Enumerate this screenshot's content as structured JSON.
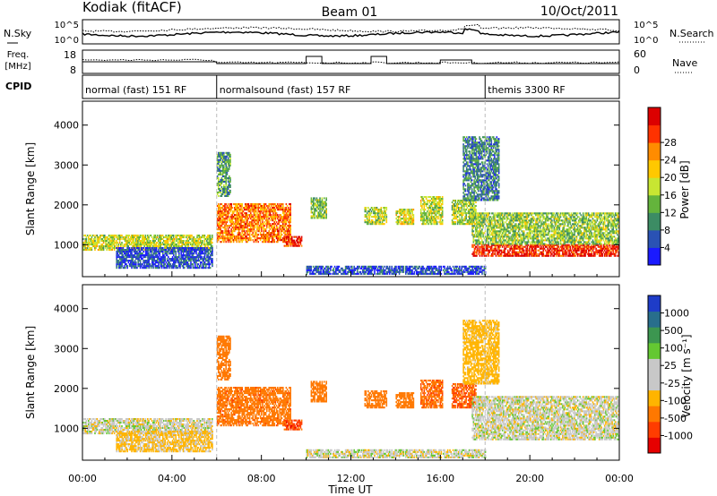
{
  "header": {
    "station": "Kodiak (fitACF)",
    "beam": "Beam 01",
    "date": "10/Oct/2011"
  },
  "status_panels": {
    "nsky_label": "N.Sky",
    "nsky_ticks": [
      "10^5",
      "10^0"
    ],
    "nsearch_label": "N.Search",
    "nsearch_ticks": [
      "10^5",
      "10^0"
    ],
    "freq_label_line1": "Freq.",
    "freq_label_line2": "[MHz]",
    "freq_ticks": [
      "18",
      "8"
    ],
    "nave_label": "Nave",
    "nave_ticks": [
      "60",
      "0"
    ],
    "cpid_label": "CPID",
    "cpid_segments": [
      {
        "label": "normal (fast) 151 RF",
        "start_hour": 0
      },
      {
        "label": "normalsound (fast) 157 RF",
        "start_hour": 6
      },
      {
        "label": "themis 3300 RF",
        "start_hour": 18
      }
    ]
  },
  "power_panel": {
    "ylabel": "Slant Range [km]",
    "yticks": [
      "1000",
      "2000",
      "3000",
      "4000"
    ],
    "colorbar_label": "Power [dB]",
    "colorbar_ticks": [
      "4",
      "8",
      "12",
      "16",
      "20",
      "24",
      "28"
    ],
    "colors": [
      "#1a1aff",
      "#2a52b4",
      "#3c8c64",
      "#64b43c",
      "#c8e632",
      "#ffc800",
      "#ff8c00",
      "#ff3200",
      "#dc0000"
    ]
  },
  "velocity_panel": {
    "ylabel": "Slant Range [km]",
    "yticks": [
      "1000",
      "2000",
      "3000",
      "4000"
    ],
    "colorbar_label": "Velocity [m s⁻¹]",
    "colorbar_ticks": [
      "1000",
      "500",
      "100",
      "25",
      "-25",
      "-100",
      "-500",
      "-1000"
    ],
    "colors": [
      "#1e3cc8",
      "#286e8c",
      "#3c9650",
      "#64c832",
      "#c8c8c8",
      "#c8c8c8",
      "#ffb400",
      "#ff7800",
      "#ff3c00",
      "#e60000"
    ]
  },
  "time_axis": {
    "xlabel": "Time UT",
    "ticks": [
      "00:00",
      "04:00",
      "08:00",
      "12:00",
      "16:00",
      "20:00",
      "00:00"
    ]
  },
  "chart_data": {
    "type": "heatmap",
    "x_unit": "hours UT",
    "xlim": [
      0,
      24
    ],
    "ylim": [
      200,
      4600
    ],
    "power_clim": [
      2,
      30
    ],
    "velocity_clim": [
      -1200,
      1200
    ],
    "scatter_regions": [
      {
        "t0": 0.0,
        "t1": 5.8,
        "r0": 850,
        "r1": 1250,
        "power": 16,
        "velocity": 0
      },
      {
        "t0": 1.5,
        "t1": 5.8,
        "r0": 400,
        "r1": 900,
        "power": 6,
        "velocity": -40
      },
      {
        "t0": 6.0,
        "t1": 9.3,
        "r0": 1050,
        "r1": 2000,
        "power": 23,
        "velocity": -350
      },
      {
        "t0": 6.0,
        "t1": 6.6,
        "r0": 2200,
        "r1": 3300,
        "power": 11,
        "velocity": -200
      },
      {
        "t0": 9.0,
        "t1": 9.8,
        "r0": 950,
        "r1": 1200,
        "power": 27,
        "velocity": -700
      },
      {
        "t0": 10.2,
        "t1": 10.9,
        "r0": 1650,
        "r1": 2150,
        "power": 14,
        "velocity": -300
      },
      {
        "t0": 12.6,
        "t1": 13.6,
        "r0": 1500,
        "r1": 1950,
        "power": 15,
        "velocity": -250
      },
      {
        "t0": 14.0,
        "t1": 14.8,
        "r0": 1500,
        "r1": 1900,
        "power": 17,
        "velocity": -300
      },
      {
        "t0": 15.1,
        "t1": 16.1,
        "r0": 1500,
        "r1": 2200,
        "power": 16,
        "velocity": -400
      },
      {
        "t0": 16.5,
        "t1": 17.6,
        "r0": 1500,
        "r1": 2100,
        "power": 15,
        "velocity": -500
      },
      {
        "t0": 17.4,
        "t1": 24.0,
        "r0": 700,
        "r1": 1000,
        "power": 27,
        "velocity": 0
      },
      {
        "t0": 17.4,
        "t1": 24.0,
        "r0": 1000,
        "r1": 1800,
        "power": 14,
        "velocity": 0
      },
      {
        "t0": 17.0,
        "t1": 18.6,
        "r0": 2100,
        "r1": 3700,
        "power": 9,
        "velocity": -60
      },
      {
        "t0": 10.0,
        "t1": 18.0,
        "r0": 250,
        "r1": 450,
        "power": 6,
        "velocity": 0
      }
    ]
  }
}
